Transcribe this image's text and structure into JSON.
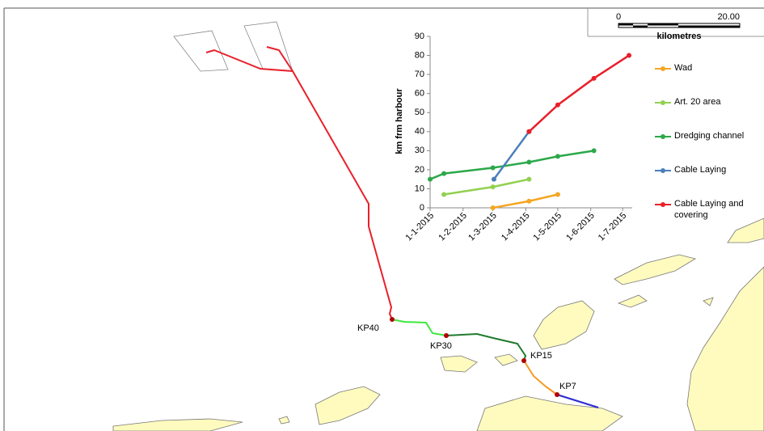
{
  "map_labels": [
    "KP40",
    "KP30",
    "KP15",
    "KP7"
  ],
  "scale_bar": {
    "start": "0",
    "end": "20.00",
    "unit": "kilometres"
  },
  "chart_data": {
    "type": "line",
    "y_label": "km frm harbour",
    "ylim": [
      0,
      90
    ],
    "yticks": [
      0,
      10,
      20,
      30,
      40,
      50,
      60,
      70,
      80,
      90
    ],
    "xlim": [
      "2015-01-01",
      "2015-07-10"
    ],
    "xticks": [
      {
        "value": "2015-01-01",
        "label": "1-1-2015"
      },
      {
        "value": "2015-02-01",
        "label": "1-2-2015"
      },
      {
        "value": "2015-03-01",
        "label": "1-3-2015"
      },
      {
        "value": "2015-04-01",
        "label": "1-4-2015"
      },
      {
        "value": "2015-05-01",
        "label": "1-5-2015"
      },
      {
        "value": "2015-06-01",
        "label": "1-6-2015"
      },
      {
        "value": "2015-07-01",
        "label": "1-7-2015"
      }
    ],
    "series": [
      {
        "name": "Wad",
        "color": "#f5a623",
        "x": [
          "2015-03-01",
          "2015-04-04",
          "2015-05-01"
        ],
        "values": [
          0,
          3.5,
          7
        ]
      },
      {
        "name": "Art. 20 area",
        "color": "#92d050",
        "x": [
          "2015-01-14",
          "2015-03-01",
          "2015-04-04"
        ],
        "values": [
          7,
          11,
          15
        ]
      },
      {
        "name": "Dredging channel",
        "color": "#2ca84a",
        "x": [
          "2015-01-01",
          "2015-01-14",
          "2015-03-01",
          "2015-04-04",
          "2015-05-01",
          "2015-06-04"
        ],
        "values": [
          15,
          18,
          21,
          24,
          27,
          30
        ]
      },
      {
        "name": "Cable Laying",
        "color": "#4a7ebb",
        "x": [
          "2015-03-02",
          "2015-04-04"
        ],
        "values": [
          15,
          40
        ]
      },
      {
        "name": "Cable Laying and covering",
        "color": "#e8202a",
        "x": [
          "2015-04-04",
          "2015-05-01",
          "2015-06-04",
          "2015-07-07"
        ],
        "values": [
          40,
          54,
          68,
          80
        ]
      }
    ]
  }
}
